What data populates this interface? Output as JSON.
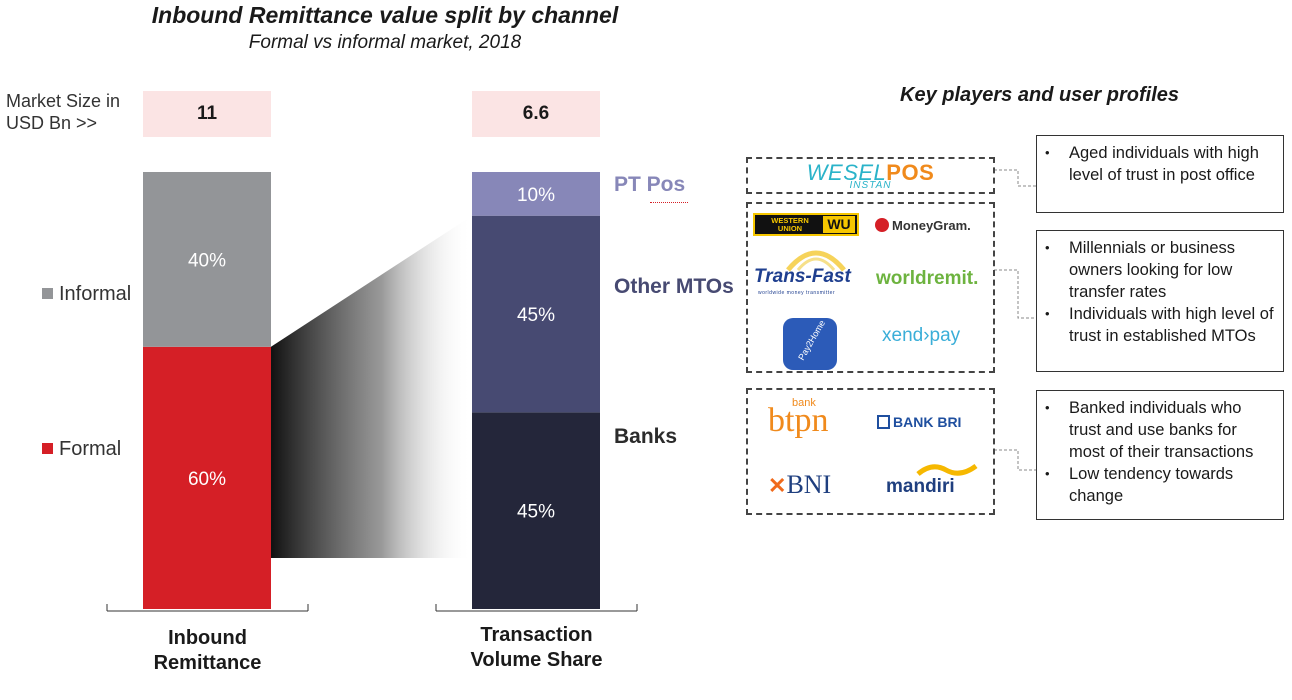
{
  "title": "Inbound Remittance value split by channel",
  "subtitle": "Formal vs informal market, 2018",
  "market_size_label_line1": "Market Size in",
  "market_size_label_line2": "USD Bn >>",
  "colors": {
    "informal": "#939598",
    "formal": "#d51f26",
    "pt_pos": "#8787b8",
    "other_mtos": "#474a72",
    "banks": "#24263a",
    "market_box": "#fbe4e4"
  },
  "chart_data": {
    "type": "bar",
    "stacked": true,
    "bars": [
      {
        "category_line1": "Inbound",
        "category_line2": "Remittance",
        "market_size": "11",
        "segments": [
          {
            "name": "Formal",
            "value": 60,
            "label": "60%"
          },
          {
            "name": "Informal",
            "value": 40,
            "label": "40%"
          }
        ]
      },
      {
        "category_line1": "Transaction",
        "category_line2": "Volume Share",
        "market_size": "6.6",
        "segments": [
          {
            "name": "Banks",
            "value": 45,
            "label": "45%"
          },
          {
            "name": "Other MTOs",
            "value": 45,
            "label": "45%"
          },
          {
            "name": "PT Pos",
            "value": 10,
            "label": "10%"
          }
        ]
      }
    ],
    "legend": [
      "Informal",
      "Formal"
    ],
    "ylim": [
      0,
      100
    ]
  },
  "key_players": {
    "title": "Key players and user profiles",
    "groups": [
      {
        "logos": [
          "WESELPOS",
          "INSTAN"
        ],
        "profile": [
          "Aged individuals with high level of trust in post office"
        ]
      },
      {
        "logos": [
          "WESTERN UNION",
          "WU",
          "MoneyGram.",
          "Trans-Fast",
          "worldremit.",
          "Pay2Home",
          "xendpay"
        ],
        "profile": [
          "Millennials or business owners looking for low transfer rates",
          "Individuals with high level of trust in established MTOs"
        ]
      },
      {
        "logos": [
          "bank",
          "btpn",
          "BANK BRI",
          "BNI",
          "mandiri"
        ],
        "profile": [
          "Banked individuals who trust and use banks for most of their transactions",
          "Low tendency towards change"
        ]
      }
    ]
  }
}
